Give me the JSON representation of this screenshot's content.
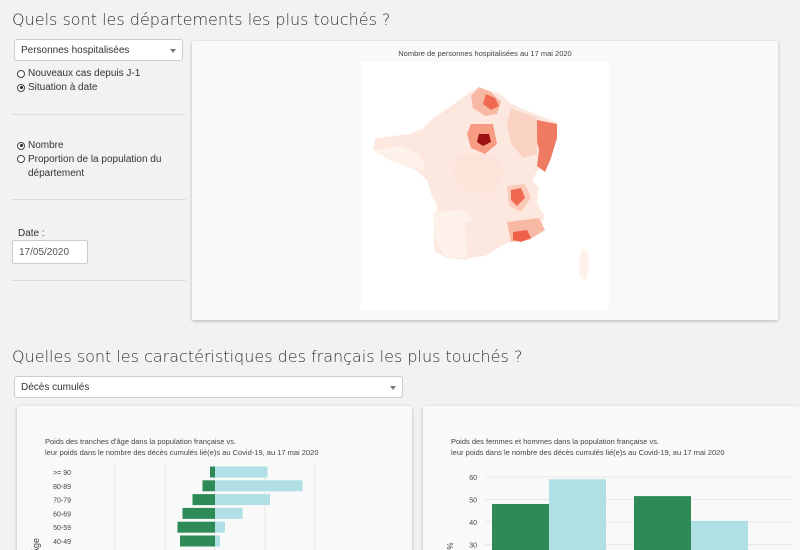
{
  "section1": {
    "title": "Quels sont les départements les plus touchés ?",
    "indicator_select": {
      "value": "Personnes hospitalisées"
    },
    "mode_radios": [
      {
        "label": "Nouveaux cas depuis J-1",
        "selected": false
      },
      {
        "label": "Situation à date",
        "selected": true
      }
    ],
    "unit_radios": [
      {
        "label": "Nombre",
        "selected": true
      },
      {
        "label": "Proportion de la population du département",
        "selected": false
      }
    ],
    "date_label": "Date :",
    "date_value": "17/05/2020",
    "map": {
      "title": "Nombre de personnes hospitalisées au 17 mai 2020",
      "color_low": "#fbe4dc",
      "color_high": "#c81d1d"
    }
  },
  "section2": {
    "title": "Quelles sont les caractéristiques des français les plus touchés ?",
    "indicator_select": {
      "value": "Décès cumulés"
    }
  },
  "chart_data": [
    {
      "type": "bar",
      "orientation": "horizontal",
      "title_line1": "Poids des tranches d'âge dans la population française vs.",
      "title_line2": "leur poids dans le nombre des décès cumulés lié(e)s au Covid-19, au 17 mai 2020",
      "ylabel": "Âge",
      "categories": [
        ">= 90",
        "80-89",
        "70-79",
        "60-69",
        "50-59",
        "40-49"
      ],
      "series": [
        {
          "values": [
            -1,
            -2.5,
            -4.5,
            -6.5,
            -7.5,
            -7
          ],
          "color": "#2e8b57"
        },
        {
          "values": [
            10.5,
            17.5,
            11,
            5.5,
            2,
            1
          ],
          "color": "#b0e0e6"
        }
      ]
    },
    {
      "type": "bar",
      "title_line1": "Poids des femmes et hommes dans la population française vs.",
      "title_line2": "leur poids dans le nombre des décès cumulés lié(e)s au Covid-19, au 17 mai 2020",
      "ylabel": "%",
      "y_ticks": [
        "60",
        "50",
        "40",
        "30"
      ],
      "groups": 2,
      "series": [
        {
          "values": [
            48,
            51.5
          ],
          "color": "#2e8b57"
        },
        {
          "values": [
            59,
            40.5
          ],
          "color": "#b0e0e6"
        }
      ]
    }
  ]
}
